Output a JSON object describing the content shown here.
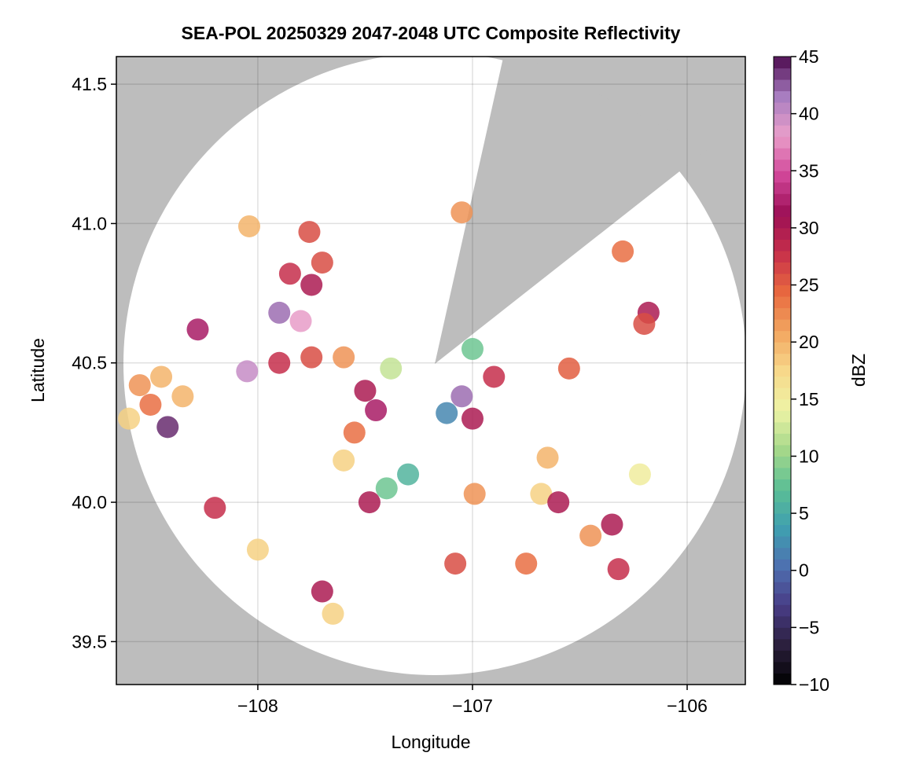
{
  "chart_data": {
    "type": "radar-map",
    "title": "SEA-POL 20250329 2047-2048 UTC Composite Reflectivity",
    "xlabel": "Longitude",
    "ylabel": "Latitude",
    "xlim": [
      -108.659,
      -105.729
    ],
    "ylim": [
      39.346,
      41.599
    ],
    "xticks": [
      {
        "value": -108,
        "label": "−108"
      },
      {
        "value": -107,
        "label": "−107"
      },
      {
        "value": -106,
        "label": "−106"
      }
    ],
    "yticks": [
      39.5,
      {
        "value": 40,
        "label": "40.0"
      },
      40.5,
      {
        "value": 41,
        "label": "41.0"
      },
      41.5
    ],
    "grid": true,
    "colorbar": {
      "label": "dBZ",
      "clim": [
        -10,
        45
      ],
      "ticks": [
        {
          "value": -10,
          "label": "−10"
        },
        {
          "value": -5,
          "label": "−5"
        },
        0,
        5,
        10,
        15,
        20,
        25,
        30,
        35,
        40,
        45
      ],
      "colors": [
        "#000000",
        "#2b1f3d",
        "#483c85",
        "#4e6fb0",
        "#3f9fb0",
        "#5cbf95",
        "#a6d88a",
        "#eef4a5",
        "#f7d88a",
        "#f2a660",
        "#e8683f",
        "#c7304a",
        "#9c0f56",
        "#d2479a",
        "#e99fca",
        "#a77cc0",
        "#4d0a4e"
      ]
    },
    "series": [
      {
        "x": [
          -108.55,
          -108.5,
          -108.45,
          -108.35,
          -108.6,
          -108.42,
          -108.28,
          -108.05,
          -107.9,
          -107.75,
          -107.6,
          -107.5,
          -107.45,
          -107.55,
          -107.6,
          -107.9,
          -107.8,
          -107.75,
          -107.7,
          -107.85,
          -107.38,
          -107.4,
          -107.3,
          -107.48,
          -107.05,
          -107.0,
          -107.12,
          -106.9,
          -107.0,
          -106.55,
          -106.3,
          -106.18,
          -106.2,
          -106.65,
          -106.68,
          -106.6,
          -106.99,
          -106.35,
          -106.45,
          -106.32,
          -106.75,
          -107.08,
          -107.7,
          -107.65,
          -108.2,
          -108.0,
          -107.05,
          -107.76,
          -108.04,
          -106.22
        ],
        "y": [
          40.42,
          40.35,
          40.45,
          40.38,
          40.3,
          40.27,
          40.62,
          40.47,
          40.5,
          40.52,
          40.52,
          40.4,
          40.33,
          40.25,
          40.15,
          40.68,
          40.65,
          40.78,
          40.86,
          40.82,
          40.48,
          40.05,
          40.1,
          40.0,
          40.38,
          40.3,
          40.32,
          40.45,
          40.55,
          40.48,
          40.9,
          40.68,
          40.64,
          40.16,
          40.03,
          40.0,
          40.03,
          39.92,
          39.88,
          39.76,
          39.78,
          39.78,
          39.68,
          39.6,
          39.98,
          39.83,
          41.04,
          40.97,
          40.99,
          40.1
        ],
        "values": [
          22,
          24,
          20,
          20,
          18,
          44,
          32,
          40,
          28,
          26,
          22,
          30,
          32,
          24,
          18,
          42,
          38,
          30,
          26,
          28,
          12,
          8,
          6,
          30,
          42,
          30,
          2,
          28,
          8,
          25,
          24,
          30,
          26,
          20,
          18,
          30,
          22,
          30,
          22,
          28,
          24,
          26,
          30,
          18,
          28,
          18,
          22,
          26,
          20,
          15
        ]
      }
    ]
  }
}
